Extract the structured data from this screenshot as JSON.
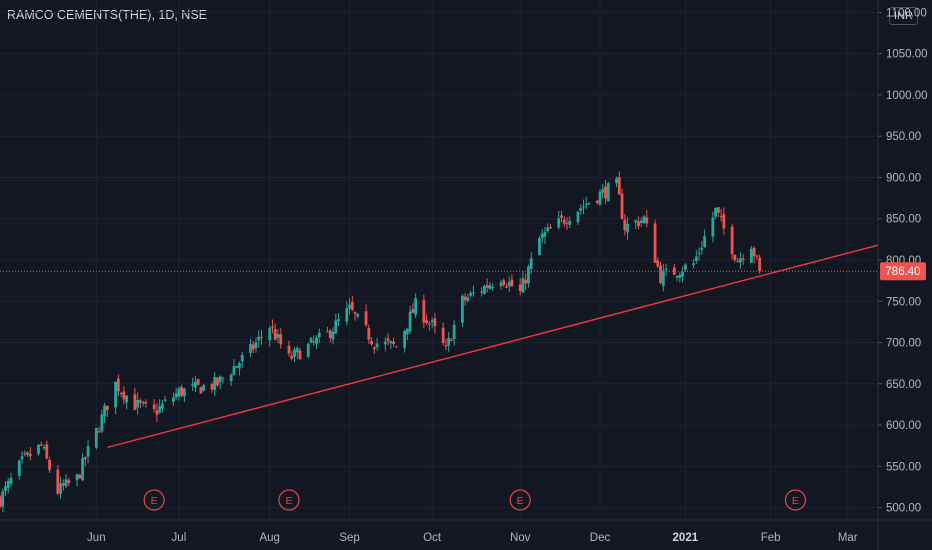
{
  "chart_data": {
    "type": "candlestick",
    "title": "RAMCO CEMENTS(THE), 1D, NSE",
    "currency": "INR",
    "last_price": 786.4,
    "last_price_label": "786.40",
    "ylim": [
      485,
      1115
    ],
    "xlim": [
      "2020-04-27",
      "2021-03-12"
    ],
    "y_ticks": [
      "500.00",
      "550.00",
      "600.00",
      "650.00",
      "700.00",
      "750.00",
      "800.00",
      "850.00",
      "900.00",
      "950.00",
      "1000.00",
      "1050.00",
      "1100.00"
    ],
    "x_ticks": [
      {
        "label": "Jun",
        "date": "2020-06-01"
      },
      {
        "label": "Jul",
        "date": "2020-07-01"
      },
      {
        "label": "Aug",
        "date": "2020-08-03"
      },
      {
        "label": "Sep",
        "date": "2020-09-01"
      },
      {
        "label": "Oct",
        "date": "2020-10-01"
      },
      {
        "label": "Nov",
        "date": "2020-11-02"
      },
      {
        "label": "Dec",
        "date": "2020-12-01"
      },
      {
        "label": "2021",
        "date": "2021-01-01"
      },
      {
        "label": "Feb",
        "date": "2021-02-01"
      },
      {
        "label": "Mar",
        "date": "2021-03-01"
      }
    ],
    "earnings_markers": [
      {
        "label": "E",
        "date": "2020-06-22"
      },
      {
        "label": "E",
        "date": "2020-08-10"
      },
      {
        "label": "E",
        "date": "2020-11-02"
      },
      {
        "label": "E",
        "date": "2021-02-10"
      }
    ],
    "trendline": {
      "from": {
        "date": "2020-06-05",
        "value": 573
      },
      "to": {
        "date": "2021-03-12",
        "value": 818
      }
    },
    "up_color": "#26a69a",
    "down_color": "#ef5350",
    "trendline_color": "#f23645",
    "price_anchors": [
      {
        "date": "2020-04-27",
        "value": 510
      },
      {
        "date": "2020-05-05",
        "value": 555
      },
      {
        "date": "2020-05-12",
        "value": 575
      },
      {
        "date": "2020-05-18",
        "value": 520
      },
      {
        "date": "2020-05-25",
        "value": 535
      },
      {
        "date": "2020-06-02",
        "value": 600
      },
      {
        "date": "2020-06-08",
        "value": 650
      },
      {
        "date": "2020-06-15",
        "value": 625
      },
      {
        "date": "2020-06-22",
        "value": 615
      },
      {
        "date": "2020-07-01",
        "value": 640
      },
      {
        "date": "2020-07-15",
        "value": 650
      },
      {
        "date": "2020-07-27",
        "value": 690
      },
      {
        "date": "2020-08-03",
        "value": 720
      },
      {
        "date": "2020-08-10",
        "value": 680
      },
      {
        "date": "2020-08-24",
        "value": 710
      },
      {
        "date": "2020-09-01",
        "value": 740
      },
      {
        "date": "2020-09-10",
        "value": 700
      },
      {
        "date": "2020-09-18",
        "value": 695
      },
      {
        "date": "2020-09-25",
        "value": 745
      },
      {
        "date": "2020-10-01",
        "value": 720
      },
      {
        "date": "2020-10-06",
        "value": 690
      },
      {
        "date": "2020-10-12",
        "value": 750
      },
      {
        "date": "2020-10-26",
        "value": 780
      },
      {
        "date": "2020-11-02",
        "value": 760
      },
      {
        "date": "2020-11-09",
        "value": 825
      },
      {
        "date": "2020-11-20",
        "value": 855
      },
      {
        "date": "2020-12-01",
        "value": 880
      },
      {
        "date": "2020-12-07",
        "value": 890
      },
      {
        "date": "2020-12-10",
        "value": 840
      },
      {
        "date": "2020-12-17",
        "value": 850
      },
      {
        "date": "2020-12-23",
        "value": 780
      },
      {
        "date": "2021-01-04",
        "value": 795
      },
      {
        "date": "2021-01-12",
        "value": 860
      },
      {
        "date": "2021-01-20",
        "value": 800
      },
      {
        "date": "2021-01-25",
        "value": 820
      },
      {
        "date": "2021-01-28",
        "value": 786.4
      }
    ]
  }
}
